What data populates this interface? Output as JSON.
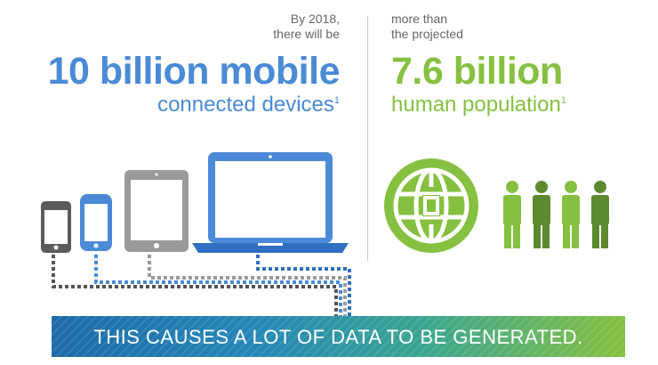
{
  "left": {
    "intro_line1": "By 2018,",
    "intro_line2": "there will be",
    "headline": "10 billion mobile",
    "subhead": "connected devices",
    "footnote": "1",
    "colors": {
      "accent": "#4a8ad6",
      "device_gray": "#5b5b5b",
      "tablet_gray": "#9a9a9a"
    }
  },
  "right": {
    "intro_line1": "more than",
    "intro_line2": "the projected",
    "headline": "7.6 billion",
    "subhead": "human population",
    "footnote": "1",
    "colors": {
      "accent": "#86c040",
      "dark_green": "#5c8a2e"
    }
  },
  "icons": {
    "devices": [
      "phone-icon",
      "smartphone-icon",
      "tablet-icon",
      "laptop-icon"
    ],
    "globe": "globe-icon",
    "people": "people-icon"
  },
  "banner": {
    "text": "THIS CAUSES A LOT OF DATA TO BE GENERATED."
  }
}
